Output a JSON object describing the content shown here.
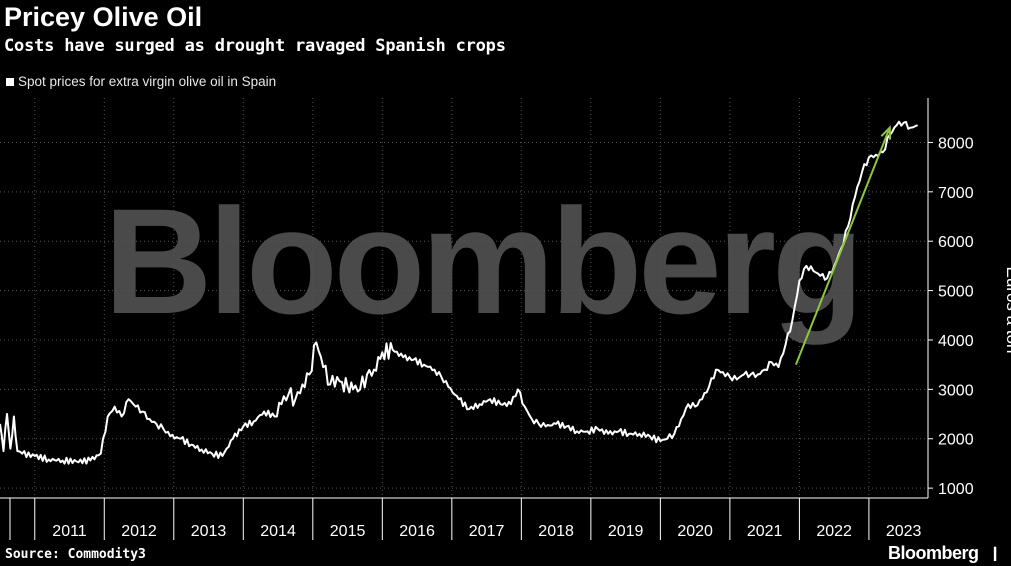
{
  "title": "Pricey Olive Oil",
  "subtitle": "Costs have surged as drought ravaged Spanish crops",
  "source": "Source: Commodity3",
  "brand": "Bloomberg",
  "watermark": "Bloomberg",
  "colors": {
    "line": "#ffffff",
    "arrow": "#8dc63f",
    "grid": "#555555",
    "background": "#000000"
  },
  "chart_data": {
    "type": "line",
    "title": "Pricey Olive Oil",
    "subtitle": "Costs have surged as drought ravaged Spanish crops",
    "legend": [
      "Spot prices for extra virgin olive oil in Spain"
    ],
    "legend_placement": "top-left",
    "xlabel": "",
    "ylabel": "Euros a ton",
    "xlim": [
      2010.5,
      2023.85
    ],
    "ylim": [
      800,
      8900
    ],
    "yticks": [
      1000,
      2000,
      3000,
      4000,
      5000,
      6000,
      7000,
      8000
    ],
    "xtick_labels": [
      "2011",
      "2012",
      "2013",
      "2014",
      "2015",
      "2016",
      "2017",
      "2018",
      "2019",
      "2020",
      "2021",
      "2022",
      "2023"
    ],
    "grid": true,
    "series": [
      {
        "name": "Spot prices for extra virgin olive oil in Spain",
        "x": [
          2010.5,
          2010.55,
          2010.6,
          2010.65,
          2010.7,
          2010.75,
          2010.82,
          2011.0,
          2011.2,
          2011.4,
          2011.6,
          2011.8,
          2011.95,
          2012.05,
          2012.15,
          2012.25,
          2012.35,
          2012.45,
          2012.55,
          2012.65,
          2012.75,
          2012.85,
          2012.95,
          2013.1,
          2013.25,
          2013.4,
          2013.55,
          2013.7,
          2013.85,
          2014.0,
          2014.15,
          2014.3,
          2014.45,
          2014.55,
          2014.65,
          2014.75,
          2014.85,
          2014.95,
          2015.05,
          2015.15,
          2015.25,
          2015.35,
          2015.42,
          2015.5,
          2015.58,
          2015.68,
          2015.78,
          2015.88,
          2016.0,
          2016.15,
          2016.3,
          2016.45,
          2016.6,
          2016.75,
          2016.85,
          2016.95,
          2017.1,
          2017.25,
          2017.4,
          2017.55,
          2017.7,
          2017.85,
          2017.95,
          2018.05,
          2018.15,
          2018.25,
          2018.35,
          2018.5,
          2018.65,
          2018.8,
          2018.95,
          2019.1,
          2019.25,
          2019.4,
          2019.55,
          2019.7,
          2019.85,
          2020.0,
          2020.1,
          2020.2,
          2020.3,
          2020.4,
          2020.5,
          2020.6,
          2020.7,
          2020.8,
          2020.9,
          2021.0,
          2021.1,
          2021.2,
          2021.3,
          2021.4,
          2021.5,
          2021.6,
          2021.7,
          2021.8,
          2021.9,
          2022.0,
          2022.1,
          2022.2,
          2022.3,
          2022.4,
          2022.5,
          2022.6,
          2022.7,
          2022.8,
          2022.9,
          2023.0,
          2023.1,
          2023.2,
          2023.3,
          2023.4,
          2023.5,
          2023.6,
          2023.7
        ],
        "values": [
          2300,
          1750,
          2500,
          1800,
          2450,
          1750,
          1700,
          1650,
          1580,
          1560,
          1540,
          1560,
          1700,
          2450,
          2650,
          2450,
          2800,
          2650,
          2550,
          2400,
          2300,
          2200,
          2050,
          2000,
          1880,
          1780,
          1700,
          1650,
          2000,
          2250,
          2350,
          2550,
          2450,
          2700,
          2900,
          2800,
          3100,
          3300,
          3950,
          3450,
          3100,
          3250,
          3150,
          3050,
          3000,
          3000,
          3300,
          3400,
          3750,
          3800,
          3650,
          3600,
          3500,
          3400,
          3250,
          3050,
          2800,
          2600,
          2700,
          2800,
          2700,
          2700,
          3000,
          2650,
          2400,
          2300,
          2250,
          2300,
          2250,
          2150,
          2150,
          2200,
          2100,
          2150,
          2100,
          2100,
          2050,
          1950,
          2000,
          2100,
          2400,
          2700,
          2650,
          2800,
          3050,
          3400,
          3350,
          3250,
          3200,
          3300,
          3300,
          3300,
          3400,
          3550,
          3450,
          3900,
          4400,
          5200,
          5500,
          5400,
          5300,
          5250,
          5500,
          5850,
          6300,
          6900,
          7400,
          7700,
          7750,
          7800,
          8150,
          8350,
          8400,
          8300,
          8350
        ]
      }
    ],
    "annotations": [
      {
        "type": "arrow",
        "from": {
          "x": 2021.95,
          "y": 3500
        },
        "to": {
          "x": 2023.3,
          "y": 8300
        }
      }
    ]
  }
}
